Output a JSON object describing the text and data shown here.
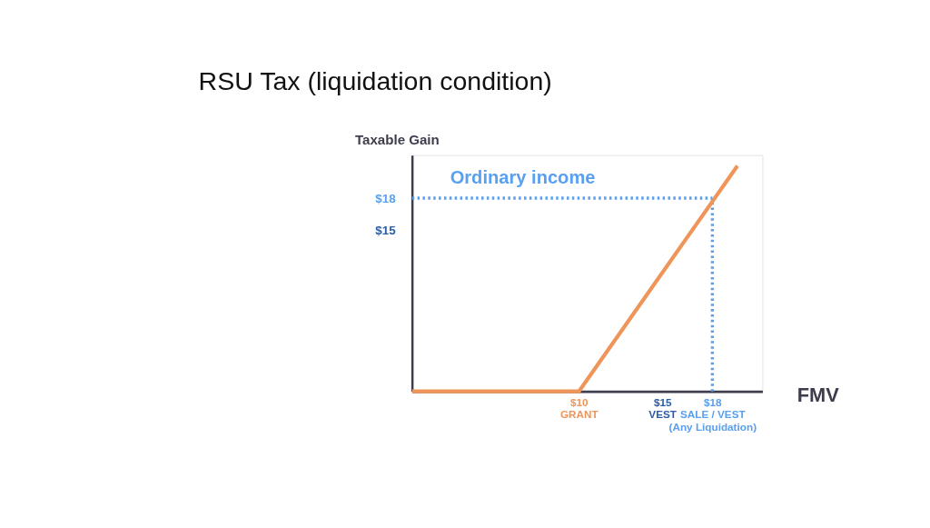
{
  "chart_data": {
    "type": "line",
    "title": "RSU Tax (liquidation condition)",
    "xlabel": "FMV",
    "ylabel": "Taxable Gain",
    "annotations": [
      "Ordinary income"
    ],
    "x": [
      0,
      10,
      19.5
    ],
    "series": [
      {
        "color": "#f0955a",
        "values": [
          0,
          0,
          21
        ]
      }
    ],
    "xlim": [
      0,
      21
    ],
    "ylim": [
      0,
      22
    ],
    "xticks": [
      {
        "value": 10,
        "label": "$10\nGRANT"
      },
      {
        "value": 15,
        "label": "$15\nVEST"
      },
      {
        "value": 18,
        "label": "$18\nSALE / VEST\n(Any Liquidation)"
      }
    ],
    "yticks": [
      {
        "value": 15,
        "label": "$15"
      },
      {
        "value": 18,
        "label": "$18"
      }
    ],
    "ref_lines": [
      {
        "axis": "y",
        "value": 18,
        "color": "#5aa0f0",
        "line_style": "dotted"
      },
      {
        "axis": "x",
        "value": 18,
        "color": "#5aa0f0",
        "line_style": "dotted"
      }
    ],
    "grid": false,
    "marker": "none",
    "line_style": "solid"
  }
}
